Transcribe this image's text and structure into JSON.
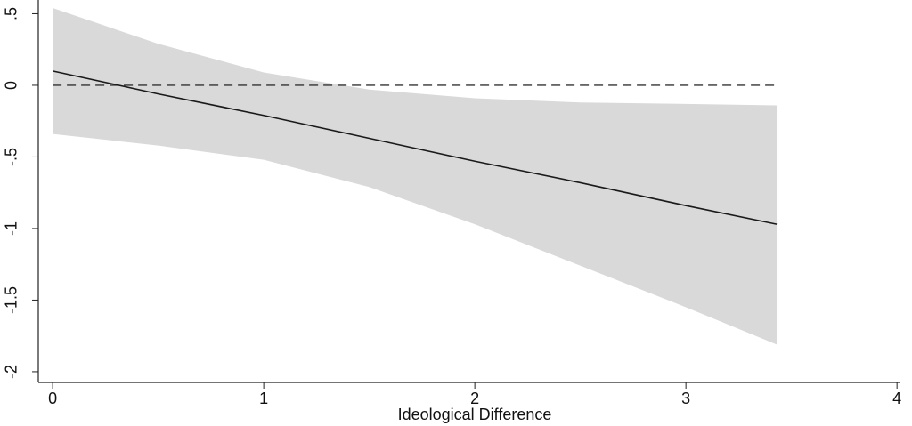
{
  "chart_data": {
    "type": "line",
    "x_label": "Ideological Difference",
    "x": [
      0,
      0.5,
      1,
      1.5,
      2,
      2.5,
      3,
      3.43
    ],
    "values": [
      0.1,
      -0.06,
      -0.21,
      -0.37,
      -0.53,
      -0.68,
      -0.84,
      -0.97
    ],
    "upper": [
      0.54,
      0.29,
      0.09,
      -0.03,
      -0.09,
      -0.12,
      -0.13,
      -0.14
    ],
    "lower": [
      -0.34,
      -0.42,
      -0.52,
      -0.71,
      -0.97,
      -1.26,
      -1.55,
      -1.81
    ],
    "color": "#1a1a1a",
    "band_color": "#d9d9d9",
    "reference_line": 0,
    "xlim": [
      -0.068,
      4.012
    ],
    "ylim": [
      -2.075,
      0.596
    ],
    "xticks": [
      0,
      1,
      2,
      3,
      4
    ],
    "yticks": [
      {
        "value": 0.5,
        "label": ".5"
      },
      0,
      {
        "value": -0.5,
        "label": "-.5"
      },
      -1,
      -1.5,
      -2
    ]
  }
}
